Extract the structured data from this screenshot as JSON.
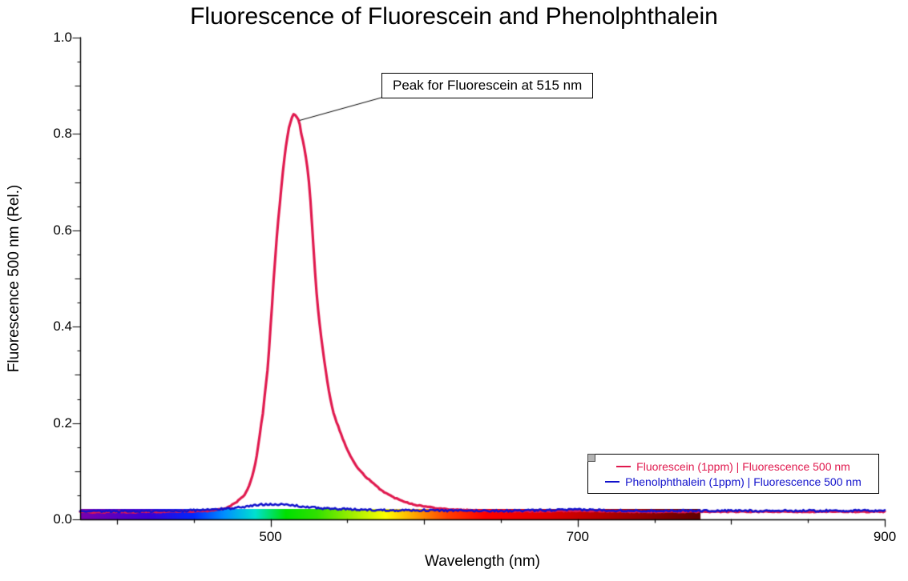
{
  "chart_data": {
    "type": "line",
    "title": "Fluorescence of Fluorescein and Phenolphthalein",
    "xlabel": "Wavelength (nm)",
    "ylabel": "Fluorescence 500 nm (Rel.)",
    "xlim": [
      376,
      900
    ],
    "ylim": [
      0,
      1.0
    ],
    "x_major_ticks": [
      500,
      700,
      900
    ],
    "x_minor_step": 50,
    "y_major_ticks": [
      0.0,
      0.2,
      0.4,
      0.6,
      0.8,
      1.0
    ],
    "y_minor_step": 0.05,
    "annotation": {
      "text": "Peak for Fluorescein at 515 nm",
      "target_x": 515,
      "target_y": 0.84
    },
    "series": [
      {
        "name": "Fluorescein (1ppm) | Fluorescence 500 nm",
        "color": "#e0194e",
        "line_width": 3.2,
        "noise": 0.002,
        "points": [
          [
            376,
            0.016
          ],
          [
            390,
            0.015
          ],
          [
            400,
            0.016
          ],
          [
            410,
            0.015
          ],
          [
            420,
            0.016
          ],
          [
            430,
            0.016
          ],
          [
            440,
            0.017
          ],
          [
            450,
            0.017
          ],
          [
            460,
            0.018
          ],
          [
            465,
            0.02
          ],
          [
            470,
            0.023
          ],
          [
            475,
            0.03
          ],
          [
            480,
            0.042
          ],
          [
            485,
            0.062
          ],
          [
            490,
            0.115
          ],
          [
            495,
            0.22
          ],
          [
            498,
            0.31
          ],
          [
            500,
            0.4
          ],
          [
            503,
            0.54
          ],
          [
            505,
            0.62
          ],
          [
            508,
            0.72
          ],
          [
            511,
            0.795
          ],
          [
            513,
            0.825
          ],
          [
            515,
            0.84
          ],
          [
            518,
            0.83
          ],
          [
            520,
            0.8
          ],
          [
            525,
            0.7
          ],
          [
            530,
            0.47
          ],
          [
            535,
            0.33
          ],
          [
            540,
            0.235
          ],
          [
            545,
            0.185
          ],
          [
            550,
            0.145
          ],
          [
            555,
            0.115
          ],
          [
            560,
            0.095
          ],
          [
            565,
            0.08
          ],
          [
            570,
            0.066
          ],
          [
            575,
            0.055
          ],
          [
            580,
            0.046
          ],
          [
            585,
            0.04
          ],
          [
            590,
            0.034
          ],
          [
            595,
            0.03
          ],
          [
            600,
            0.027
          ],
          [
            610,
            0.023
          ],
          [
            620,
            0.02
          ],
          [
            640,
            0.018
          ],
          [
            660,
            0.017
          ],
          [
            680,
            0.017
          ],
          [
            700,
            0.018
          ],
          [
            720,
            0.017
          ],
          [
            740,
            0.016
          ],
          [
            760,
            0.016
          ],
          [
            780,
            0.016
          ],
          [
            800,
            0.016
          ],
          [
            820,
            0.016
          ],
          [
            840,
            0.016
          ],
          [
            860,
            0.016
          ],
          [
            880,
            0.016
          ],
          [
            900,
            0.016
          ]
        ]
      },
      {
        "name": "Phenolphthalein (1ppm) | Fluorescence 500 nm",
        "color": "#1212cc",
        "line_width": 2.6,
        "noise": 0.004,
        "points": [
          [
            376,
            0.016
          ],
          [
            400,
            0.017
          ],
          [
            420,
            0.017
          ],
          [
            440,
            0.018
          ],
          [
            460,
            0.02
          ],
          [
            470,
            0.022
          ],
          [
            480,
            0.025
          ],
          [
            485,
            0.027
          ],
          [
            490,
            0.029
          ],
          [
            495,
            0.031
          ],
          [
            500,
            0.032
          ],
          [
            505,
            0.031
          ],
          [
            510,
            0.03
          ],
          [
            515,
            0.029
          ],
          [
            520,
            0.027
          ],
          [
            525,
            0.025
          ],
          [
            530,
            0.024
          ],
          [
            540,
            0.022
          ],
          [
            550,
            0.021
          ],
          [
            560,
            0.02
          ],
          [
            580,
            0.019
          ],
          [
            600,
            0.019
          ],
          [
            620,
            0.018
          ],
          [
            640,
            0.018
          ],
          [
            660,
            0.018
          ],
          [
            680,
            0.019
          ],
          [
            700,
            0.02
          ],
          [
            720,
            0.019
          ],
          [
            740,
            0.018
          ],
          [
            760,
            0.018
          ],
          [
            780,
            0.018
          ],
          [
            800,
            0.018
          ],
          [
            820,
            0.018
          ],
          [
            840,
            0.018
          ],
          [
            860,
            0.018
          ],
          [
            880,
            0.018
          ],
          [
            900,
            0.018
          ]
        ]
      }
    ],
    "spectrum_bar": {
      "range": [
        376,
        780
      ],
      "height": 13,
      "stops": [
        [
          376,
          "#7a00ad"
        ],
        [
          420,
          "#3b00d6"
        ],
        [
          450,
          "#0028ff"
        ],
        [
          470,
          "#0090ff"
        ],
        [
          490,
          "#00e0d0"
        ],
        [
          510,
          "#00e000"
        ],
        [
          530,
          "#30e000"
        ],
        [
          555,
          "#a8f000"
        ],
        [
          575,
          "#ffff00"
        ],
        [
          595,
          "#ffa000"
        ],
        [
          615,
          "#ff4000"
        ],
        [
          640,
          "#ff0000"
        ],
        [
          680,
          "#e00000"
        ],
        [
          720,
          "#b00000"
        ],
        [
          780,
          "#600000"
        ]
      ]
    },
    "legend_position": "bottom-right",
    "grid": false
  }
}
